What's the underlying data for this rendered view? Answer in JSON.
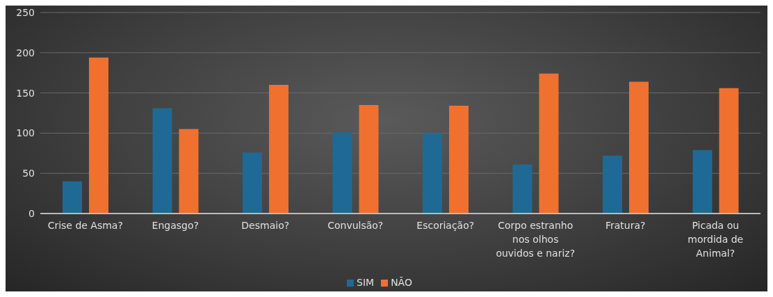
{
  "chart_data": {
    "type": "bar",
    "categories": [
      "Crise de Asma?",
      "Engasgo?",
      "Desmaio?",
      "Convulsão?",
      "Escoriação?",
      "Corpo estranho nos olhos ouvidos e nariz?",
      "Fratura?",
      "Picada ou mordida de Animal?"
    ],
    "series": [
      {
        "name": "SIM",
        "color": "#1f6a94",
        "values": [
          40,
          131,
          76,
          101,
          100,
          61,
          72,
          79
        ]
      },
      {
        "name": "NÃO",
        "color": "#f07030",
        "values": [
          194,
          105,
          160,
          135,
          134,
          174,
          164,
          156
        ]
      }
    ],
    "ylim": [
      0,
      250
    ],
    "yticks": [
      0,
      50,
      100,
      150,
      200,
      250
    ],
    "grid": "y",
    "legend": "bottom"
  }
}
